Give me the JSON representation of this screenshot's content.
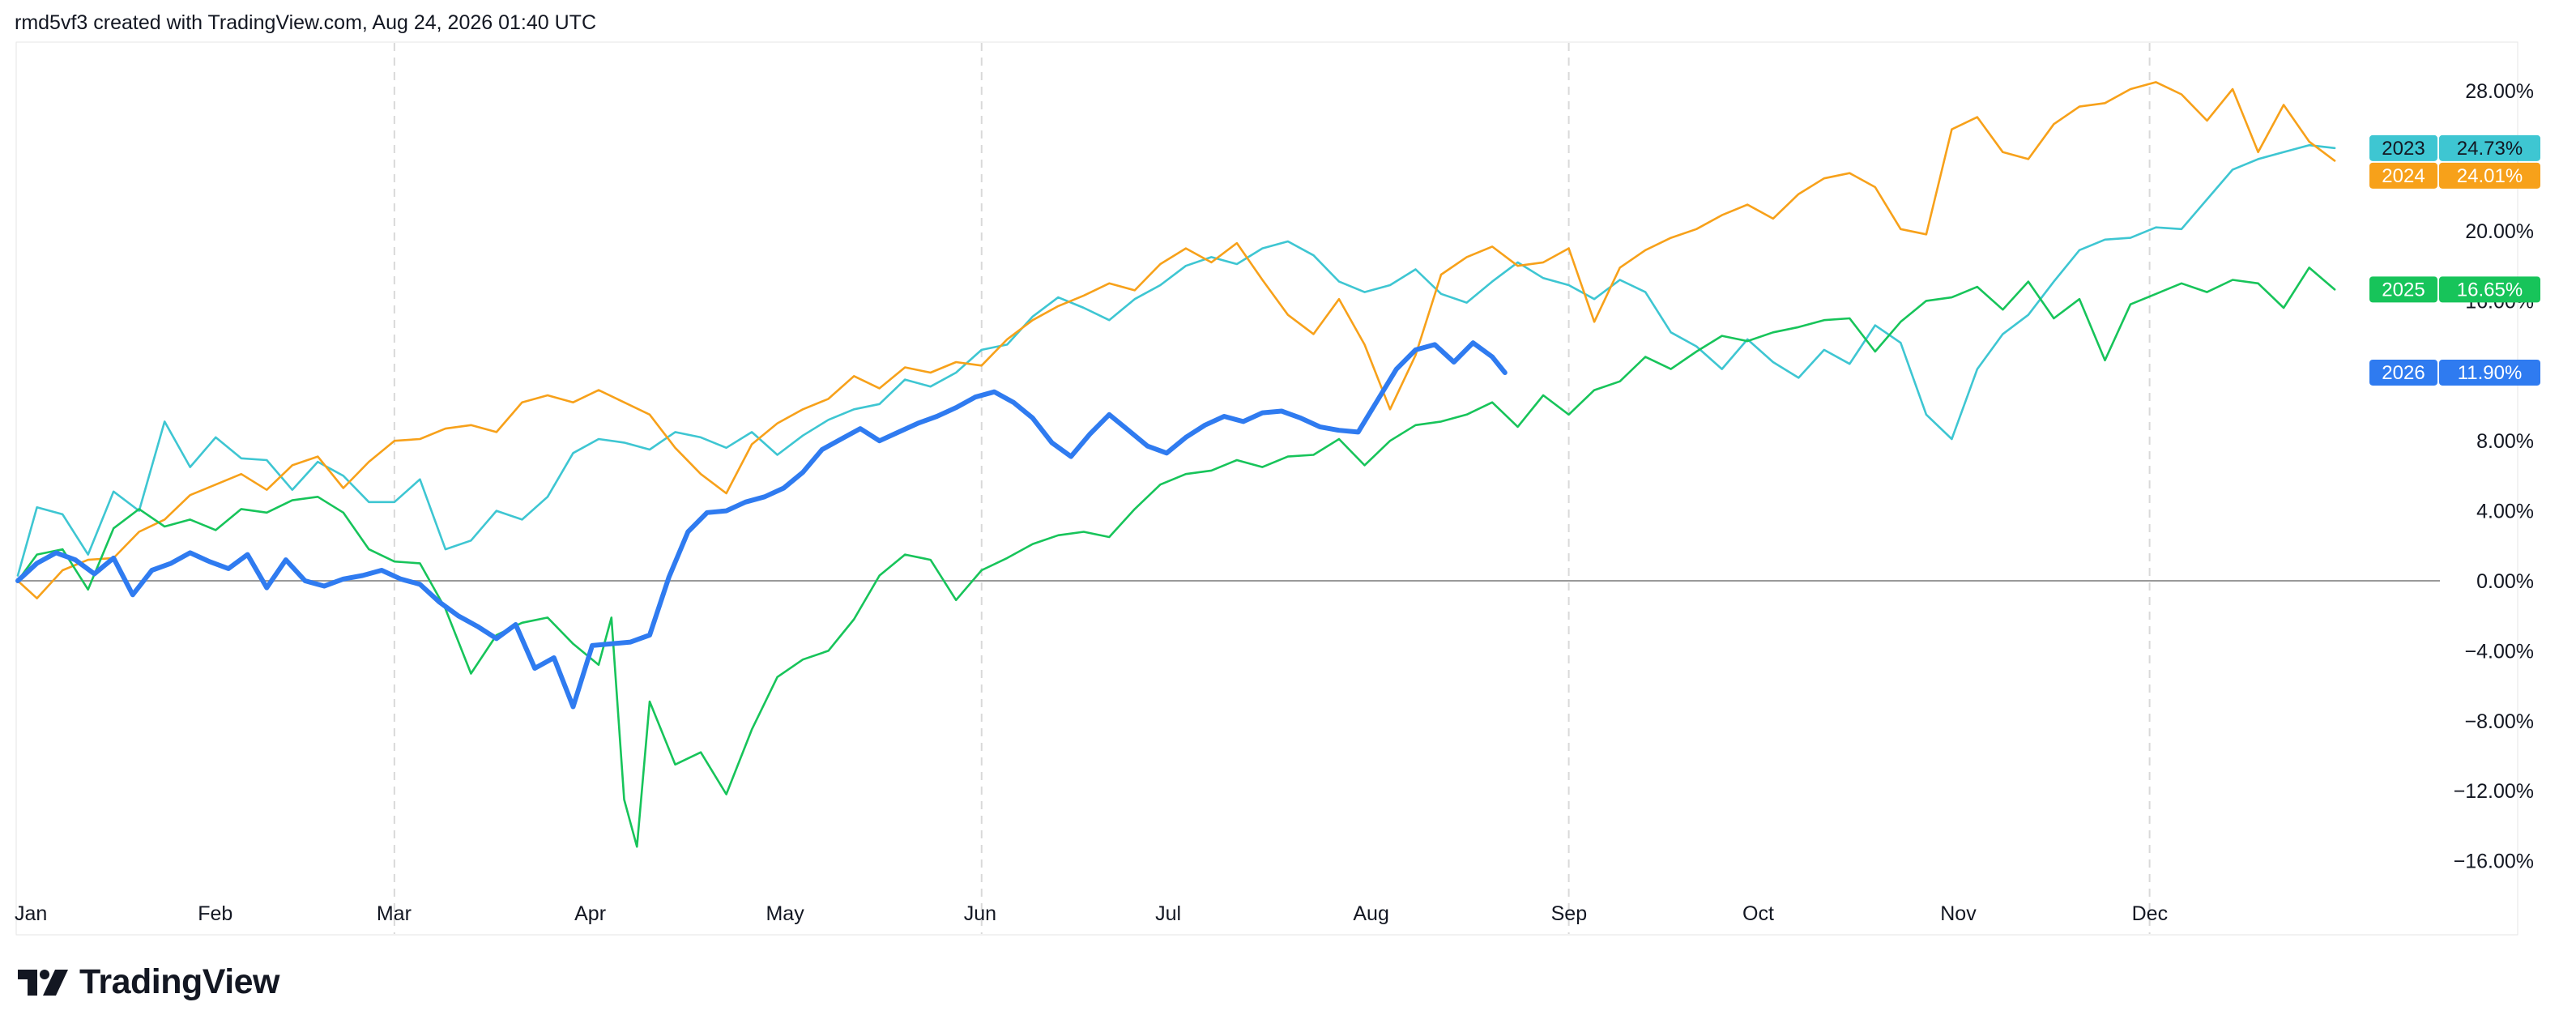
{
  "header": {
    "attribution": "rmd5vf3 created with TradingView.com, Aug 24, 2026 01:40 UTC"
  },
  "footer": {
    "logo_text": "TradingView"
  },
  "colors": {
    "2023": "#3ec6d2",
    "2024": "#f7a11a",
    "2025": "#17c45a",
    "2026": "#2f7bf0",
    "grid_vertical": "#d9d9d9",
    "zero_line": "#9a9a9a",
    "axis_text": "#131722",
    "frame": "#e6e6e6"
  },
  "chart_data": {
    "type": "line",
    "title": "",
    "xlabel": "",
    "ylabel": "",
    "x_unit": "day_of_year",
    "xlim": [
      1,
      365
    ],
    "ylim": [
      -18,
      31
    ],
    "grid": "vertical dashed at Mar, Jun, Sep, Dec",
    "legend": "right edge value tags",
    "x_ticks": [
      {
        "label": "Jan",
        "x": 1
      },
      {
        "label": "Feb",
        "x": 32
      },
      {
        "label": "Mar",
        "x": 60
      },
      {
        "label": "Apr",
        "x": 91
      },
      {
        "label": "May",
        "x": 121
      },
      {
        "label": "Jun",
        "x": 152
      },
      {
        "label": "Jul",
        "x": 182
      },
      {
        "label": "Aug",
        "x": 213
      },
      {
        "label": "Sep",
        "x": 244
      },
      {
        "label": "Oct",
        "x": 274
      },
      {
        "label": "Nov",
        "x": 305
      },
      {
        "label": "Dec",
        "x": 335
      }
    ],
    "y_ticks": [
      {
        "label": "28.00%",
        "y": 28
      },
      {
        "label": "20.00%",
        "y": 20
      },
      {
        "label": "16.00%",
        "y": 16
      },
      {
        "label": "8.00%",
        "y": 8
      },
      {
        "label": "4.00%",
        "y": 4
      },
      {
        "label": "0.00%",
        "y": 0
      },
      {
        "label": "−4.00%",
        "y": -4
      },
      {
        "label": "−8.00%",
        "y": -8
      },
      {
        "label": "−12.00%",
        "y": -12
      },
      {
        "label": "−16.00%",
        "y": -16
      }
    ],
    "series": [
      {
        "name": "2023",
        "last_label": "24.73%",
        "tag_y": 24.73,
        "thick": false,
        "x": [
          1,
          4,
          8,
          12,
          16,
          20,
          24,
          28,
          32,
          36,
          40,
          44,
          48,
          52,
          56,
          60,
          64,
          68,
          72,
          76,
          80,
          84,
          88,
          92,
          96,
          100,
          104,
          108,
          112,
          116,
          120,
          124,
          128,
          132,
          136,
          140,
          144,
          148,
          152,
          156,
          160,
          164,
          168,
          172,
          176,
          180,
          184,
          188,
          192,
          196,
          200,
          204,
          208,
          212,
          216,
          220,
          224,
          228,
          232,
          236,
          240,
          244,
          248,
          252,
          256,
          260,
          264,
          268,
          272,
          276,
          280,
          284,
          288,
          292,
          296,
          300,
          304,
          308,
          312,
          316,
          320,
          324,
          328,
          332,
          336,
          340,
          344,
          348,
          352,
          356,
          360,
          364
        ],
        "y": [
          0.3,
          4.2,
          3.8,
          1.5,
          5.1,
          4.0,
          9.1,
          6.5,
          8.2,
          7.0,
          6.9,
          5.2,
          6.8,
          6.0,
          4.5,
          4.5,
          5.8,
          1.8,
          2.3,
          4.0,
          3.5,
          4.8,
          7.3,
          8.1,
          7.9,
          7.5,
          8.5,
          8.2,
          7.6,
          8.5,
          7.2,
          8.3,
          9.2,
          9.8,
          10.1,
          11.5,
          11.1,
          11.9,
          13.2,
          13.5,
          15.1,
          16.2,
          15.6,
          14.9,
          16.1,
          16.9,
          18.0,
          18.5,
          18.1,
          19.0,
          19.4,
          18.6,
          17.1,
          16.5,
          16.9,
          17.8,
          16.4,
          15.9,
          17.1,
          18.2,
          17.3,
          16.9,
          16.1,
          17.2,
          16.5,
          14.2,
          13.4,
          12.1,
          13.8,
          12.5,
          11.6,
          13.2,
          12.4,
          14.6,
          13.6,
          9.5,
          8.1,
          12.1,
          14.1,
          15.2,
          17.1,
          18.9,
          19.5,
          19.6,
          20.2,
          20.1,
          21.8,
          23.5,
          24.1,
          24.5,
          24.9,
          24.73
        ]
      },
      {
        "name": "2024",
        "last_label": "24.01%",
        "tag_y": 24.01,
        "thick": false,
        "x": [
          1,
          4,
          8,
          12,
          16,
          20,
          24,
          28,
          32,
          36,
          40,
          44,
          48,
          52,
          56,
          60,
          64,
          68,
          72,
          76,
          80,
          84,
          88,
          92,
          96,
          100,
          104,
          108,
          112,
          116,
          120,
          124,
          128,
          132,
          136,
          140,
          144,
          148,
          152,
          156,
          160,
          164,
          168,
          172,
          176,
          180,
          184,
          188,
          192,
          196,
          200,
          204,
          208,
          212,
          216,
          220,
          224,
          228,
          232,
          236,
          240,
          244,
          248,
          252,
          256,
          260,
          264,
          268,
          272,
          276,
          280,
          284,
          288,
          292,
          296,
          300,
          304,
          308,
          312,
          316,
          320,
          324,
          328,
          332,
          336,
          340,
          344,
          348,
          352,
          356,
          360,
          364
        ],
        "y": [
          0.0,
          -1.0,
          0.6,
          1.2,
          1.3,
          2.8,
          3.5,
          4.9,
          5.5,
          6.1,
          5.2,
          6.6,
          7.1,
          5.3,
          6.8,
          8.0,
          8.1,
          8.7,
          8.9,
          8.5,
          10.2,
          10.6,
          10.2,
          10.9,
          10.2,
          9.5,
          7.6,
          6.1,
          5.0,
          7.8,
          9.0,
          9.8,
          10.4,
          11.7,
          11.0,
          12.2,
          11.9,
          12.5,
          12.3,
          13.8,
          14.9,
          15.7,
          16.3,
          17.0,
          16.6,
          18.1,
          19.0,
          18.2,
          19.3,
          17.2,
          15.2,
          14.1,
          16.1,
          13.5,
          9.8,
          12.9,
          17.5,
          18.5,
          19.1,
          18.0,
          18.2,
          19.0,
          14.8,
          17.9,
          18.9,
          19.6,
          20.1,
          20.9,
          21.5,
          20.7,
          22.1,
          23.0,
          23.3,
          22.5,
          20.1,
          19.8,
          25.8,
          26.5,
          24.5,
          24.1,
          26.1,
          27.1,
          27.3,
          28.1,
          28.5,
          27.8,
          26.3,
          28.1,
          24.5,
          27.2,
          25.1,
          24.01
        ]
      },
      {
        "name": "2025",
        "last_label": "16.65%",
        "tag_y": 16.65,
        "thick": false,
        "x": [
          1,
          4,
          8,
          12,
          16,
          20,
          24,
          28,
          32,
          36,
          40,
          44,
          48,
          52,
          56,
          60,
          64,
          68,
          72,
          76,
          80,
          84,
          88,
          92,
          94,
          96,
          98,
          100,
          104,
          108,
          112,
          116,
          120,
          124,
          128,
          132,
          136,
          140,
          144,
          148,
          152,
          156,
          160,
          164,
          168,
          172,
          176,
          180,
          184,
          188,
          192,
          196,
          200,
          204,
          208,
          212,
          216,
          220,
          224,
          228,
          232,
          236,
          240,
          244,
          248,
          252,
          256,
          260,
          264,
          268,
          272,
          276,
          280,
          284,
          288,
          292,
          296,
          300,
          304,
          308,
          312,
          316,
          320,
          324,
          328,
          332,
          336,
          340,
          344,
          348,
          352,
          356,
          360,
          364
        ],
        "y": [
          0.0,
          1.5,
          1.8,
          -0.5,
          3.0,
          4.1,
          3.1,
          3.5,
          2.9,
          4.1,
          3.9,
          4.6,
          4.8,
          3.9,
          1.8,
          1.1,
          1.0,
          -1.6,
          -5.3,
          -3.1,
          -2.4,
          -2.1,
          -3.6,
          -4.8,
          -2.1,
          -12.5,
          -15.2,
          -6.9,
          -10.5,
          -9.8,
          -12.2,
          -8.5,
          -5.5,
          -4.5,
          -4.0,
          -2.2,
          0.3,
          1.5,
          1.2,
          -1.1,
          0.6,
          1.3,
          2.1,
          2.6,
          2.8,
          2.5,
          4.1,
          5.5,
          6.1,
          6.3,
          6.9,
          6.5,
          7.1,
          7.2,
          8.1,
          6.6,
          8.0,
          8.9,
          9.1,
          9.5,
          10.2,
          8.8,
          10.6,
          9.5,
          10.9,
          11.4,
          12.8,
          12.1,
          13.1,
          14.0,
          13.7,
          14.2,
          14.5,
          14.9,
          15.0,
          13.1,
          14.8,
          16.0,
          16.2,
          16.8,
          15.5,
          17.1,
          15.0,
          16.1,
          12.6,
          15.8,
          16.4,
          17.0,
          16.5,
          17.2,
          17.0,
          15.6,
          17.9,
          16.65
        ]
      },
      {
        "name": "2026",
        "last_label": "11.90%",
        "tag_y": 11.9,
        "thick": true,
        "x": [
          1,
          4,
          7,
          10,
          13,
          16,
          19,
          22,
          25,
          28,
          31,
          34,
          37,
          40,
          43,
          46,
          49,
          52,
          55,
          58,
          61,
          64,
          67,
          70,
          73,
          76,
          79,
          82,
          85,
          88,
          91,
          94,
          97,
          100,
          103,
          106,
          109,
          112,
          115,
          118,
          121,
          124,
          127,
          130,
          133,
          136,
          139,
          142,
          145,
          148,
          151,
          154,
          157,
          160,
          163,
          166,
          169,
          172,
          175,
          178,
          181,
          184,
          187,
          190,
          193,
          196,
          199,
          202,
          205,
          208,
          211,
          214,
          217,
          220,
          223,
          226,
          229,
          232,
          234
        ],
        "y": [
          0.0,
          1.0,
          1.6,
          1.2,
          0.4,
          1.3,
          -0.8,
          0.6,
          1.0,
          1.6,
          1.1,
          0.7,
          1.5,
          -0.4,
          1.2,
          0.0,
          -0.3,
          0.1,
          0.3,
          0.6,
          0.1,
          -0.2,
          -1.2,
          -2.0,
          -2.6,
          -3.3,
          -2.5,
          -5.0,
          -4.4,
          -7.2,
          -3.7,
          -3.6,
          -3.5,
          -3.1,
          0.2,
          2.8,
          3.9,
          4.0,
          4.5,
          4.8,
          5.3,
          6.2,
          7.5,
          8.1,
          8.7,
          8.0,
          8.5,
          9.0,
          9.4,
          9.9,
          10.5,
          10.8,
          10.2,
          9.3,
          7.9,
          7.1,
          8.4,
          9.5,
          8.6,
          7.7,
          7.3,
          8.2,
          8.9,
          9.4,
          9.1,
          9.6,
          9.7,
          9.3,
          8.8,
          8.6,
          8.5,
          10.3,
          12.1,
          13.2,
          13.5,
          12.5,
          13.6,
          12.8,
          11.9
        ]
      }
    ]
  }
}
